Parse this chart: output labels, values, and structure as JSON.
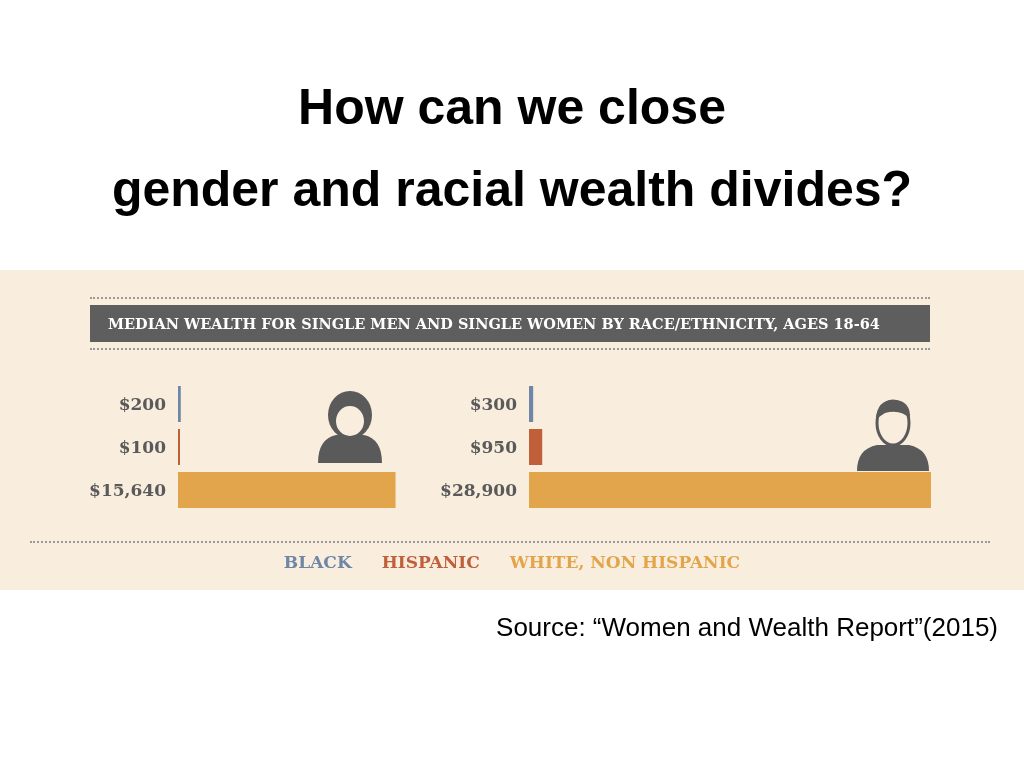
{
  "chart_data": [
    {
      "type": "bar",
      "orientation": "horizontal",
      "title": "How can we close\ngender and racial wealth divides?",
      "subtitle": "MEDIAN WEALTH FOR SINGLE MEN AND SINGLE WOMEN BY RACE/ETHNICITY, AGES 18-64",
      "categories": [
        null
      ],
      "series": [
        {
          "name": "BLACK",
          "color": "#6f87a6",
          "values": [
            200
          ],
          "value_labels": [
            "$200"
          ]
        },
        {
          "name": "HISPANIC",
          "color": "#c0603a",
          "values": [
            100
          ],
          "value_labels": [
            "$100"
          ]
        },
        {
          "name": "WHITE, NON HISPANIC",
          "color": "#e2a54b",
          "values": [
            15640
          ],
          "value_labels": [
            "$15,640"
          ]
        }
      ],
      "annotations": [
        "Source: “Women and Wealth Report”(2015)"
      ]
    },
    {
      "type": "bar",
      "orientation": "horizontal",
      "categories": [
        null
      ],
      "series": [
        {
          "color": "#6f87a6",
          "values": [
            300
          ],
          "value_labels": [
            "$300"
          ]
        },
        {
          "color": "#c0603a",
          "values": [
            950
          ],
          "value_labels": [
            "$950"
          ]
        },
        {
          "color": "#e2a54b",
          "values": [
            28900
          ],
          "value_labels": [
            "$28,900"
          ]
        }
      ]
    }
  ]
}
